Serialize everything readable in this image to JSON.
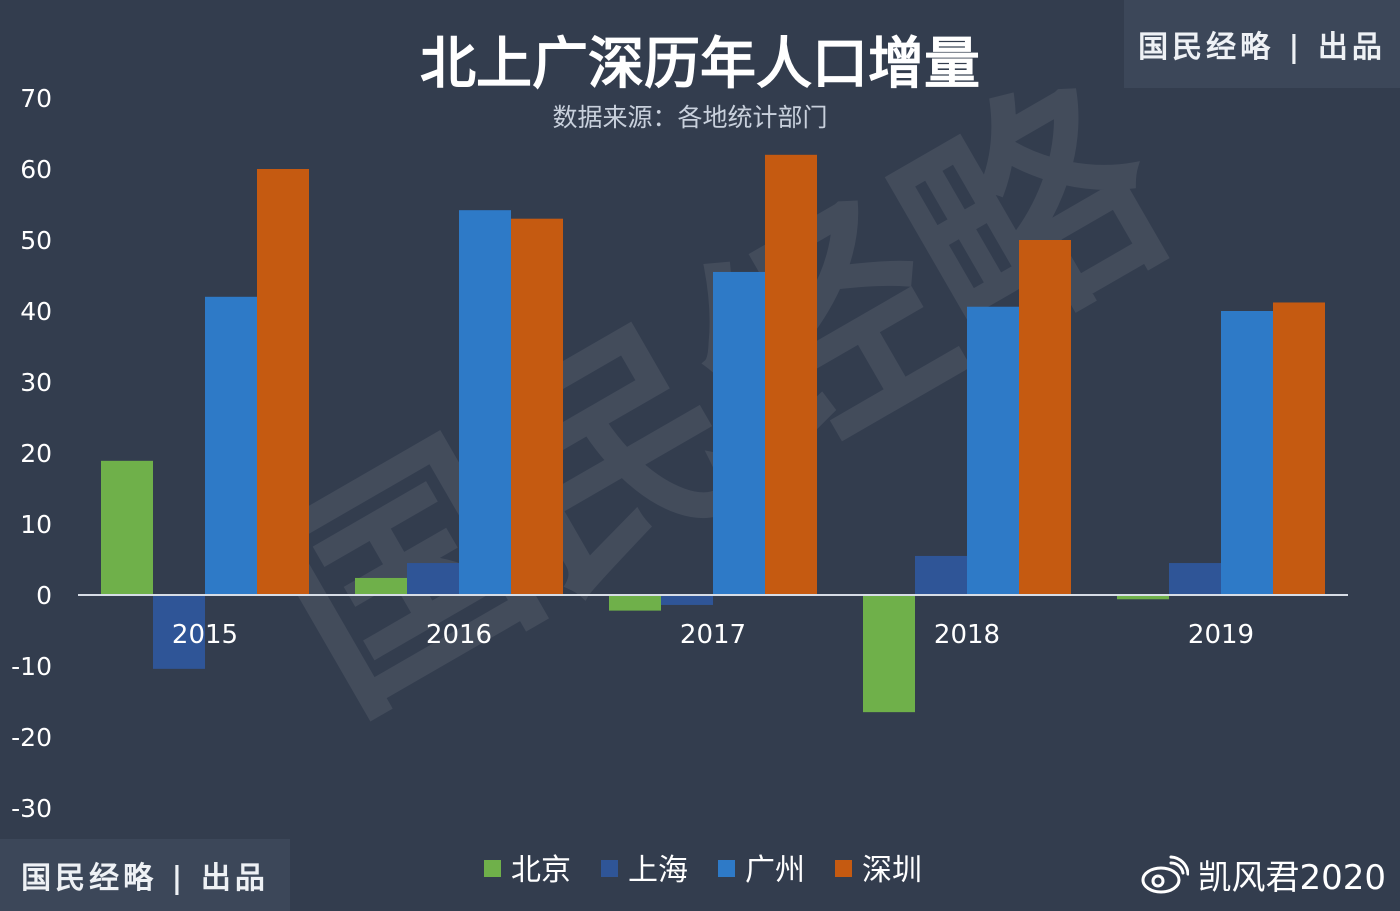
{
  "watermark": {
    "top_badge": "国民经略 | 出品",
    "bottom_badge": "国民经略 | 出品",
    "weibo_handle": "凯风君2020",
    "background_text": "国民经略"
  },
  "colors": {
    "background": "#333d4e",
    "axis": "#d7dde6",
    "text": "#ffffff",
    "subtitle": "#c8d0dc",
    "北京": "#6fb04a",
    "上海": "#2f5597",
    "广州": "#2e7ac7",
    "深圳": "#c55a11"
  },
  "chart_data": {
    "type": "bar",
    "title": "北上广深历年人口增量",
    "subtitle": "数据来源：各地统计部门",
    "categories": [
      "2015",
      "2016",
      "2017",
      "2018",
      "2019"
    ],
    "series": [
      {
        "name": "北京",
        "values": [
          18.9,
          2.4,
          -2.2,
          -16.5,
          -0.6
        ]
      },
      {
        "name": "上海",
        "values": [
          -10.4,
          4.5,
          -1.4,
          5.5,
          4.5
        ]
      },
      {
        "name": "广州",
        "values": [
          42.0,
          54.2,
          45.5,
          40.6,
          40.0
        ]
      },
      {
        "name": "深圳",
        "values": [
          60.0,
          53.0,
          62.0,
          50.0,
          41.2
        ]
      }
    ],
    "ylim": [
      -30,
      70
    ],
    "yticks": [
      -30,
      -20,
      -10,
      0,
      10,
      20,
      30,
      40,
      50,
      60,
      70
    ],
    "grid": false,
    "legend_position": "bottom"
  }
}
